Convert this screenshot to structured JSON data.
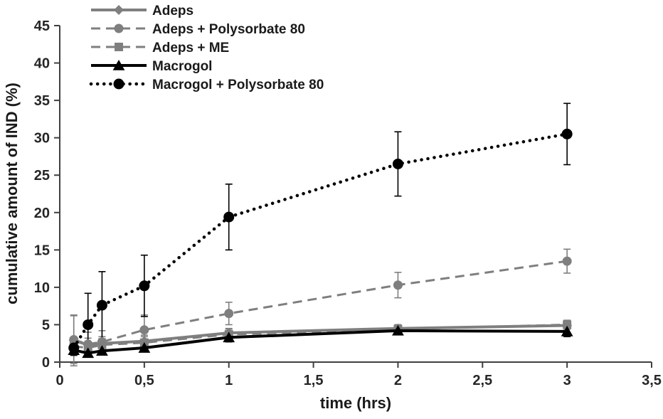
{
  "chart_data": {
    "type": "line",
    "title": "",
    "xlabel": "time (hrs)",
    "ylabel": "cumulative amount of IND (%)",
    "xlim": [
      0,
      3.5
    ],
    "ylim": [
      0,
      45
    ],
    "x_ticks": [
      0,
      0.5,
      1,
      1.5,
      2,
      2.5,
      3,
      3.5
    ],
    "x_tick_labels": [
      "0",
      "0,5",
      "1",
      "1,5",
      "2",
      "2,5",
      "3",
      "3,5"
    ],
    "y_ticks": [
      0,
      5,
      10,
      15,
      20,
      25,
      30,
      35,
      40,
      45
    ],
    "y_tick_labels": [
      "0",
      "5",
      "10",
      "15",
      "20",
      "25",
      "30",
      "35",
      "40",
      "45"
    ],
    "grid": false,
    "legend_position": "top-left",
    "x": [
      0.083,
      0.167,
      0.25,
      0.5,
      1,
      2,
      3
    ],
    "series": [
      {
        "name": "Adeps",
        "color": "#7f7f7f",
        "line_style": "solid",
        "marker": "diamond",
        "marker_size": 7,
        "values": [
          2.9,
          2.3,
          2.5,
          2.8,
          3.9,
          4.5,
          4.9
        ],
        "errors": [
          3.4,
          0.9,
          0.9,
          0.8,
          0.6,
          0.5,
          0.5
        ]
      },
      {
        "name": "Adeps + Polysorbate 80",
        "color": "#7f7f7f",
        "line_style": "dashed",
        "marker": "circle",
        "marker_size": 6.5,
        "values": [
          3.0,
          2.4,
          2.7,
          4.3,
          6.5,
          10.3,
          13.5
        ],
        "errors": [
          3.2,
          1.6,
          1.5,
          2.0,
          1.5,
          1.7,
          1.6
        ]
      },
      {
        "name": "Adeps + ME",
        "color": "#7f7f7f",
        "line_style": "dashed",
        "marker": "square",
        "marker_size": 6,
        "values": [
          2.1,
          1.9,
          2.3,
          2.6,
          3.7,
          4.4,
          5.0
        ],
        "errors": [
          0.9,
          0.7,
          0.8,
          0.8,
          0.7,
          0.6,
          0.6
        ]
      },
      {
        "name": "Macrogol",
        "color": "#000000",
        "line_style": "solid",
        "marker": "triangle",
        "marker_size": 8,
        "values": [
          1.6,
          1.2,
          1.5,
          1.9,
          3.3,
          4.2,
          4.1
        ],
        "errors": [
          0.6,
          0.5,
          0.5,
          0.5,
          0.6,
          0.5,
          0.7
        ]
      },
      {
        "name": "Macrogol + Polysorbate 80",
        "color": "#000000",
        "line_style": "dotted",
        "marker": "circle",
        "marker_size": 7.5,
        "values": [
          1.9,
          5.0,
          7.6,
          10.2,
          19.4,
          26.5,
          30.5
        ],
        "errors": [
          1.0,
          4.2,
          4.5,
          4.1,
          4.4,
          4.3,
          4.1
        ]
      }
    ],
    "axis_color": "#404040"
  }
}
